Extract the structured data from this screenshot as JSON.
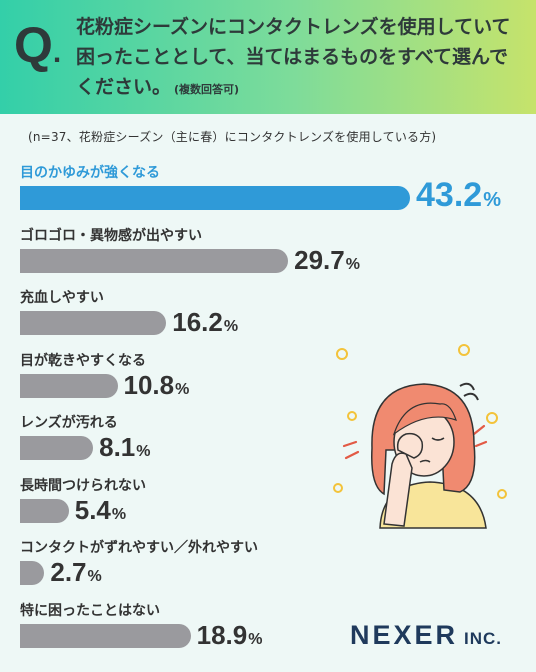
{
  "header": {
    "q_mark": "Q",
    "q_dot": ".",
    "question": "花粉症シーズンにコンタクトレンズを使用していて困ったこととして、当てはまるものをすべて選んでください。",
    "note": "(複数回答可)"
  },
  "subtitle": "(n=37、花粉症シーズン（主に春）にコンタクトレンズを使用している方)",
  "chart_data": {
    "type": "bar",
    "orientation": "horizontal",
    "unit": "%",
    "categories": [
      "目のかゆみが強くなる",
      "ゴロゴロ・異物感が出やすい",
      "充血しやすい",
      "目が乾きやすくなる",
      "レンズが汚れる",
      "長時間つけられない",
      "コンタクトがずれやすい／外れやすい",
      "特に困ったことはない"
    ],
    "values": [
      43.2,
      29.7,
      16.2,
      10.8,
      8.1,
      5.4,
      2.7,
      18.9
    ],
    "value_labels": [
      "43.2",
      "29.7",
      "16.2",
      "10.8",
      "8.1",
      "5.4",
      "2.7",
      "18.9"
    ],
    "highlight_index": 0,
    "colors": {
      "highlight": "#2f9ad8",
      "default": "#9a9a9e"
    }
  },
  "logo": {
    "main": "NEXER",
    "inc": "INC."
  }
}
